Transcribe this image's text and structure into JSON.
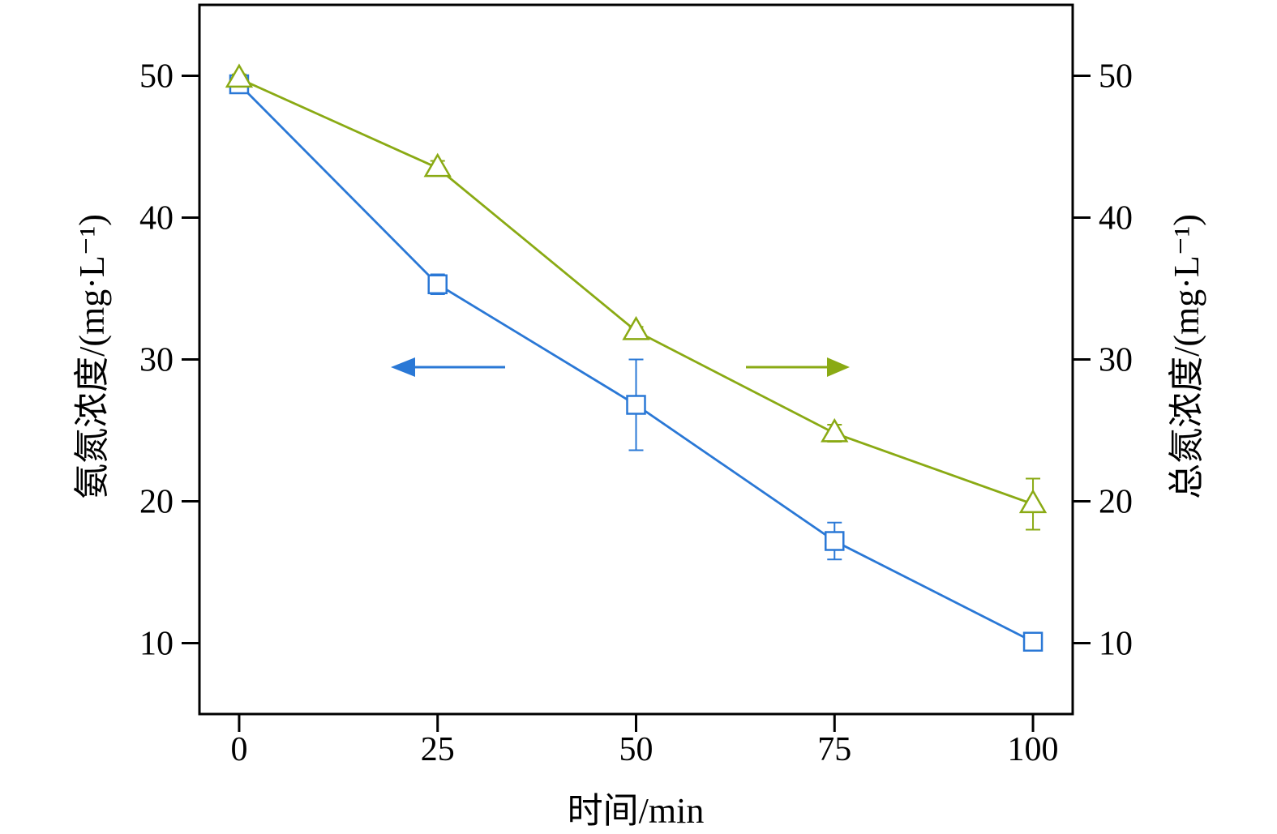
{
  "chart_data": {
    "type": "line",
    "x": [
      0,
      25,
      50,
      75,
      100
    ],
    "xlabel": "时间/min",
    "ylabel_left": "氨氮浓度/(mg·L⁻¹)",
    "ylabel_right": "总氮浓度/(mg·L⁻¹)",
    "xlim": [
      -5,
      105
    ],
    "ylim": [
      5,
      55
    ],
    "x_ticks": [
      "0",
      "25",
      "50",
      "75",
      "100"
    ],
    "y_ticks": [
      "10",
      "20",
      "30",
      "40",
      "50"
    ],
    "grid": false,
    "series": [
      {
        "axis": "left",
        "marker": "square",
        "color": "#2a78d6",
        "values": [
          49.4,
          35.3,
          26.8,
          17.2,
          10.1
        ],
        "errors": [
          0.4,
          0.7,
          3.2,
          1.3,
          0.5
        ]
      },
      {
        "axis": "right",
        "marker": "triangle",
        "color": "#8aaa14",
        "values": [
          49.8,
          43.5,
          32.0,
          24.8,
          19.8
        ],
        "errors": [
          0.3,
          0.5,
          0.3,
          0.6,
          1.8
        ]
      }
    ],
    "annotations": [
      {
        "type": "arrow",
        "direction": "left",
        "color": "#2a78d6",
        "meaning": "left-axis-series"
      },
      {
        "type": "arrow",
        "direction": "right",
        "color": "#8aaa14",
        "meaning": "right-axis-series"
      }
    ]
  }
}
